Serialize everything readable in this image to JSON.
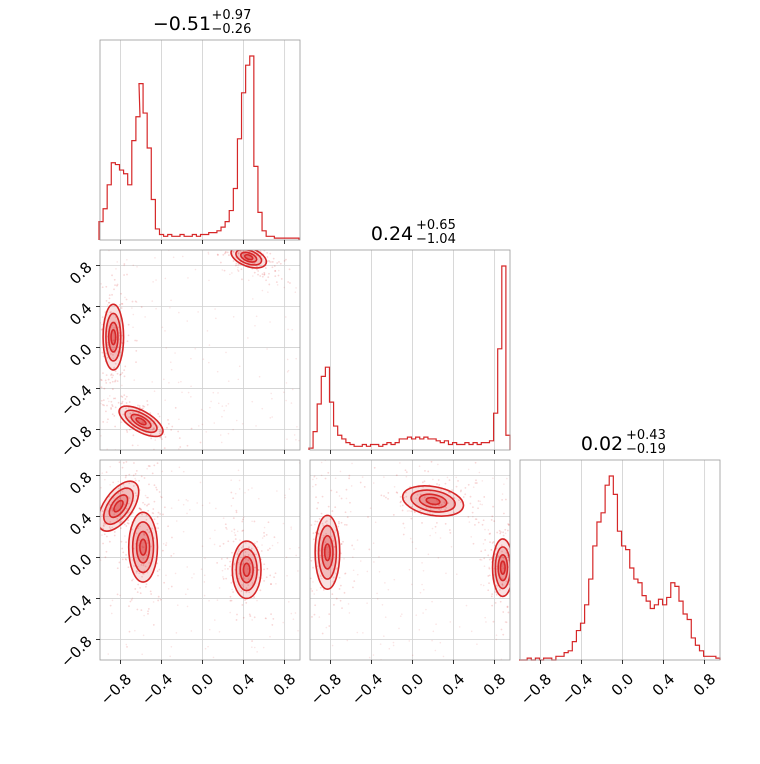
{
  "chart_data": {
    "type": "corner",
    "color": "#d62728",
    "tick_values": [
      -0.8,
      -0.4,
      0.0,
      0.4,
      0.8
    ],
    "tick_labels": [
      "−0.8",
      "−0.4",
      "0.0",
      "0.4",
      "0.8"
    ],
    "axis_range": [
      -1.0,
      0.95
    ],
    "grid": true,
    "marginals": [
      {
        "param": 0,
        "title_value": "−0.51",
        "title_plus": "+0.97",
        "title_minus": "−0.26",
        "bins": [
          {
            "x": -0.99,
            "y": 0.1
          },
          {
            "x": -0.95,
            "y": 0.17
          },
          {
            "x": -0.91,
            "y": 0.3
          },
          {
            "x": -0.87,
            "y": 0.42
          },
          {
            "x": -0.83,
            "y": 0.41
          },
          {
            "x": -0.79,
            "y": 0.38
          },
          {
            "x": -0.75,
            "y": 0.36
          },
          {
            "x": -0.71,
            "y": 0.3
          },
          {
            "x": -0.67,
            "y": 0.54
          },
          {
            "x": -0.63,
            "y": 0.67
          },
          {
            "x": -0.6,
            "y": 0.85
          },
          {
            "x": -0.56,
            "y": 0.69
          },
          {
            "x": -0.52,
            "y": 0.5
          },
          {
            "x": -0.48,
            "y": 0.22
          },
          {
            "x": -0.44,
            "y": 0.06
          },
          {
            "x": -0.4,
            "y": 0.03
          },
          {
            "x": -0.36,
            "y": 0.02
          },
          {
            "x": -0.32,
            "y": 0.03
          },
          {
            "x": -0.28,
            "y": 0.02
          },
          {
            "x": -0.24,
            "y": 0.02
          },
          {
            "x": -0.2,
            "y": 0.03
          },
          {
            "x": -0.16,
            "y": 0.02
          },
          {
            "x": -0.12,
            "y": 0.02
          },
          {
            "x": -0.08,
            "y": 0.03
          },
          {
            "x": -0.04,
            "y": 0.02
          },
          {
            "x": 0.0,
            "y": 0.03
          },
          {
            "x": 0.04,
            "y": 0.03
          },
          {
            "x": 0.08,
            "y": 0.04
          },
          {
            "x": 0.12,
            "y": 0.04
          },
          {
            "x": 0.16,
            "y": 0.05
          },
          {
            "x": 0.2,
            "y": 0.07
          },
          {
            "x": 0.24,
            "y": 0.1
          },
          {
            "x": 0.28,
            "y": 0.16
          },
          {
            "x": 0.32,
            "y": 0.28
          },
          {
            "x": 0.36,
            "y": 0.55
          },
          {
            "x": 0.4,
            "y": 0.8
          },
          {
            "x": 0.44,
            "y": 0.95
          },
          {
            "x": 0.48,
            "y": 1.0
          },
          {
            "x": 0.52,
            "y": 0.4
          },
          {
            "x": 0.56,
            "y": 0.15
          },
          {
            "x": 0.6,
            "y": 0.05
          },
          {
            "x": 0.64,
            "y": 0.02
          },
          {
            "x": 0.68,
            "y": 0.02
          },
          {
            "x": 0.72,
            "y": 0.01
          },
          {
            "x": 0.76,
            "y": 0.01
          },
          {
            "x": 0.8,
            "y": 0.01
          },
          {
            "x": 0.84,
            "y": 0.01
          },
          {
            "x": 0.88,
            "y": 0.01
          },
          {
            "x": 0.92,
            "y": 0.01
          }
        ]
      },
      {
        "param": 1,
        "title_value": "0.24",
        "title_plus": "+0.65",
        "title_minus": "−1.04",
        "bins": [
          {
            "x": -0.99,
            "y": 0.01
          },
          {
            "x": -0.95,
            "y": 0.1
          },
          {
            "x": -0.91,
            "y": 0.25
          },
          {
            "x": -0.87,
            "y": 0.4
          },
          {
            "x": -0.83,
            "y": 0.45
          },
          {
            "x": -0.79,
            "y": 0.26
          },
          {
            "x": -0.75,
            "y": 0.13
          },
          {
            "x": -0.71,
            "y": 0.08
          },
          {
            "x": -0.67,
            "y": 0.06
          },
          {
            "x": -0.63,
            "y": 0.04
          },
          {
            "x": -0.59,
            "y": 0.03
          },
          {
            "x": -0.55,
            "y": 0.02
          },
          {
            "x": -0.51,
            "y": 0.02
          },
          {
            "x": -0.47,
            "y": 0.03
          },
          {
            "x": -0.43,
            "y": 0.02
          },
          {
            "x": -0.39,
            "y": 0.03
          },
          {
            "x": -0.35,
            "y": 0.03
          },
          {
            "x": -0.31,
            "y": 0.02
          },
          {
            "x": -0.27,
            "y": 0.03
          },
          {
            "x": -0.23,
            "y": 0.04
          },
          {
            "x": -0.19,
            "y": 0.03
          },
          {
            "x": -0.15,
            "y": 0.04
          },
          {
            "x": -0.11,
            "y": 0.06
          },
          {
            "x": -0.07,
            "y": 0.06
          },
          {
            "x": -0.03,
            "y": 0.07
          },
          {
            "x": 0.01,
            "y": 0.06
          },
          {
            "x": 0.05,
            "y": 0.07
          },
          {
            "x": 0.09,
            "y": 0.06
          },
          {
            "x": 0.13,
            "y": 0.07
          },
          {
            "x": 0.17,
            "y": 0.06
          },
          {
            "x": 0.21,
            "y": 0.06
          },
          {
            "x": 0.25,
            "y": 0.05
          },
          {
            "x": 0.29,
            "y": 0.04
          },
          {
            "x": 0.33,
            "y": 0.05
          },
          {
            "x": 0.37,
            "y": 0.03
          },
          {
            "x": 0.41,
            "y": 0.04
          },
          {
            "x": 0.45,
            "y": 0.03
          },
          {
            "x": 0.49,
            "y": 0.03
          },
          {
            "x": 0.53,
            "y": 0.04
          },
          {
            "x": 0.57,
            "y": 0.03
          },
          {
            "x": 0.61,
            "y": 0.04
          },
          {
            "x": 0.65,
            "y": 0.03
          },
          {
            "x": 0.69,
            "y": 0.04
          },
          {
            "x": 0.73,
            "y": 0.04
          },
          {
            "x": 0.77,
            "y": 0.05
          },
          {
            "x": 0.81,
            "y": 0.2
          },
          {
            "x": 0.85,
            "y": 0.55
          },
          {
            "x": 0.89,
            "y": 1.0
          },
          {
            "x": 0.93,
            "y": 0.08
          }
        ]
      },
      {
        "param": 2,
        "title_value": "0.02",
        "title_plus": "+0.43",
        "title_minus": "−0.19",
        "bins": [
          {
            "x": -0.99,
            "y": 0.0
          },
          {
            "x": -0.95,
            "y": 0.0
          },
          {
            "x": -0.91,
            "y": 0.01
          },
          {
            "x": -0.87,
            "y": 0.0
          },
          {
            "x": -0.83,
            "y": 0.01
          },
          {
            "x": -0.79,
            "y": 0.0
          },
          {
            "x": -0.75,
            "y": 0.01
          },
          {
            "x": -0.71,
            "y": 0.01
          },
          {
            "x": -0.67,
            "y": 0.0
          },
          {
            "x": -0.63,
            "y": 0.02
          },
          {
            "x": -0.59,
            "y": 0.02
          },
          {
            "x": -0.55,
            "y": 0.04
          },
          {
            "x": -0.51,
            "y": 0.05
          },
          {
            "x": -0.47,
            "y": 0.1
          },
          {
            "x": -0.43,
            "y": 0.16
          },
          {
            "x": -0.39,
            "y": 0.2
          },
          {
            "x": -0.35,
            "y": 0.3
          },
          {
            "x": -0.31,
            "y": 0.44
          },
          {
            "x": -0.27,
            "y": 0.62
          },
          {
            "x": -0.23,
            "y": 0.75
          },
          {
            "x": -0.19,
            "y": 0.8
          },
          {
            "x": -0.15,
            "y": 0.95
          },
          {
            "x": -0.11,
            "y": 1.0
          },
          {
            "x": -0.07,
            "y": 0.9
          },
          {
            "x": -0.03,
            "y": 0.7
          },
          {
            "x": 0.01,
            "y": 0.62
          },
          {
            "x": 0.05,
            "y": 0.6
          },
          {
            "x": 0.09,
            "y": 0.5
          },
          {
            "x": 0.13,
            "y": 0.44
          },
          {
            "x": 0.17,
            "y": 0.42
          },
          {
            "x": 0.21,
            "y": 0.35
          },
          {
            "x": 0.25,
            "y": 0.32
          },
          {
            "x": 0.29,
            "y": 0.28
          },
          {
            "x": 0.33,
            "y": 0.3
          },
          {
            "x": 0.37,
            "y": 0.33
          },
          {
            "x": 0.41,
            "y": 0.3
          },
          {
            "x": 0.45,
            "y": 0.34
          },
          {
            "x": 0.49,
            "y": 0.42
          },
          {
            "x": 0.53,
            "y": 0.4
          },
          {
            "x": 0.57,
            "y": 0.32
          },
          {
            "x": 0.61,
            "y": 0.25
          },
          {
            "x": 0.65,
            "y": 0.22
          },
          {
            "x": 0.69,
            "y": 0.12
          },
          {
            "x": 0.73,
            "y": 0.08
          },
          {
            "x": 0.77,
            "y": 0.05
          },
          {
            "x": 0.81,
            "y": 0.02
          },
          {
            "x": 0.85,
            "y": 0.02
          },
          {
            "x": 0.89,
            "y": 0.02
          },
          {
            "x": 0.93,
            "y": 0.01
          }
        ]
      }
    ],
    "joint_panels": [
      {
        "x_param": 0,
        "y_param": 1,
        "modes": [
          {
            "cx": 0.45,
            "cy": 0.88,
            "sx": 0.09,
            "sy": 0.045,
            "angle": -20
          },
          {
            "cx": -0.87,
            "cy": 0.1,
            "sx": 0.05,
            "sy": 0.16,
            "angle": 0
          },
          {
            "cx": -0.6,
            "cy": -0.72,
            "sx": 0.12,
            "sy": 0.05,
            "angle": -30
          }
        ]
      },
      {
        "x_param": 0,
        "y_param": 2,
        "modes": [
          {
            "cx": -0.82,
            "cy": 0.5,
            "sx": 0.07,
            "sy": 0.14,
            "angle": -35
          },
          {
            "cx": -0.58,
            "cy": 0.1,
            "sx": 0.07,
            "sy": 0.17,
            "angle": 0
          },
          {
            "cx": 0.43,
            "cy": -0.12,
            "sx": 0.07,
            "sy": 0.14,
            "angle": 0
          }
        ]
      },
      {
        "x_param": 1,
        "y_param": 2,
        "modes": [
          {
            "cx": -0.83,
            "cy": 0.05,
            "sx": 0.06,
            "sy": 0.18,
            "angle": 0
          },
          {
            "cx": 0.2,
            "cy": 0.55,
            "sx": 0.15,
            "sy": 0.07,
            "angle": -10
          },
          {
            "cx": 0.88,
            "cy": -0.1,
            "sx": 0.05,
            "sy": 0.14,
            "angle": 0
          }
        ]
      }
    ]
  }
}
